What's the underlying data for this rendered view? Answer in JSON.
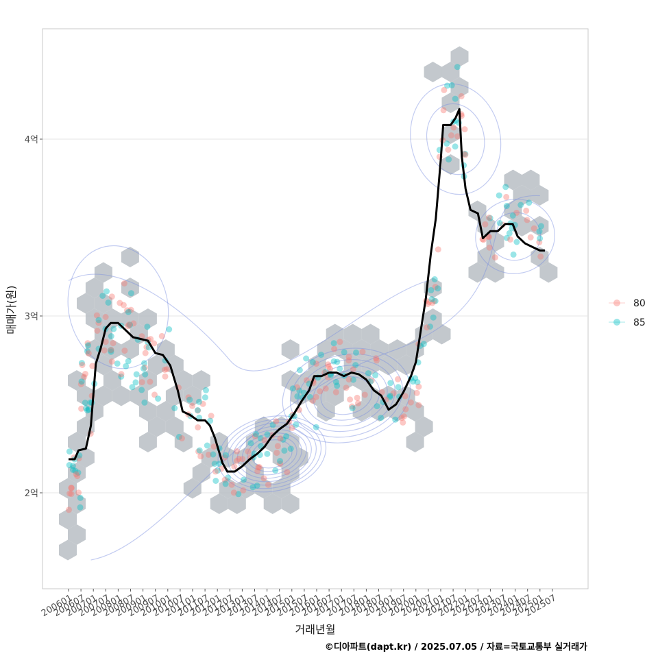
{
  "chart_data": {
    "type": "scatter",
    "xlabel": "거래년월",
    "ylabel": "매매가(원)",
    "caption": "©디아파트(dapt.kr) / 2025.07.05 / 자료=국토교통부 실거래가",
    "ylim": [
      1.55,
      4.65
    ],
    "y_ticks": [
      {
        "value": 2,
        "label": "2억"
      },
      {
        "value": 3,
        "label": "3억"
      },
      {
        "value": 4,
        "label": "4억"
      }
    ],
    "x_range": [
      2006.0,
      2025.58
    ],
    "x_ticks": [
      "200601",
      "200607",
      "200701",
      "200707",
      "200801",
      "200807",
      "200901",
      "200907",
      "201001",
      "201007",
      "201101",
      "201107",
      "201201",
      "201207",
      "201301",
      "201307",
      "201401",
      "201407",
      "201501",
      "201507",
      "201601",
      "201607",
      "201701",
      "201707",
      "201801",
      "201807",
      "201901",
      "201907",
      "202001",
      "202007",
      "202101",
      "202107",
      "202201",
      "202207",
      "202301",
      "202307",
      "202401",
      "202407",
      "202501",
      "202507"
    ],
    "grid": true,
    "legend_position": "right",
    "legend": [
      {
        "label": "80",
        "color": "#F8766D"
      },
      {
        "label": "85",
        "color": "#00BFC4"
      }
    ],
    "colors": {
      "hex": "#b8bec4",
      "contour": "#7b8fe0",
      "trend": "#000000",
      "panel_border": "#c8c8c8",
      "grid": "#e5e5e5"
    },
    "trend_line": [
      [
        2006.0,
        2.19
      ],
      [
        2006.25,
        2.19
      ],
      [
        2006.4,
        2.24
      ],
      [
        2006.7,
        2.25
      ],
      [
        2006.9,
        2.38
      ],
      [
        2007.1,
        2.73
      ],
      [
        2007.3,
        2.82
      ],
      [
        2007.5,
        2.93
      ],
      [
        2007.7,
        2.96
      ],
      [
        2008.0,
        2.96
      ],
      [
        2008.3,
        2.92
      ],
      [
        2008.6,
        2.88
      ],
      [
        2008.9,
        2.87
      ],
      [
        2009.2,
        2.86
      ],
      [
        2009.5,
        2.79
      ],
      [
        2009.8,
        2.78
      ],
      [
        2010.1,
        2.72
      ],
      [
        2010.4,
        2.58
      ],
      [
        2010.6,
        2.46
      ],
      [
        2010.9,
        2.44
      ],
      [
        2011.2,
        2.41
      ],
      [
        2011.5,
        2.41
      ],
      [
        2011.7,
        2.38
      ],
      [
        2011.9,
        2.31
      ],
      [
        2012.2,
        2.17
      ],
      [
        2012.4,
        2.12
      ],
      [
        2012.7,
        2.12
      ],
      [
        2013.0,
        2.15
      ],
      [
        2013.3,
        2.19
      ],
      [
        2013.6,
        2.22
      ],
      [
        2013.9,
        2.26
      ],
      [
        2014.2,
        2.32
      ],
      [
        2014.5,
        2.36
      ],
      [
        2014.8,
        2.39
      ],
      [
        2015.1,
        2.45
      ],
      [
        2015.4,
        2.52
      ],
      [
        2015.7,
        2.58
      ],
      [
        2015.9,
        2.66
      ],
      [
        2016.2,
        2.66
      ],
      [
        2016.5,
        2.68
      ],
      [
        2016.8,
        2.68
      ],
      [
        2017.1,
        2.66
      ],
      [
        2017.4,
        2.68
      ],
      [
        2017.7,
        2.67
      ],
      [
        2018.0,
        2.64
      ],
      [
        2018.3,
        2.58
      ],
      [
        2018.6,
        2.55
      ],
      [
        2018.9,
        2.47
      ],
      [
        2019.2,
        2.5
      ],
      [
        2019.5,
        2.57
      ],
      [
        2019.8,
        2.66
      ],
      [
        2020.0,
        2.74
      ],
      [
        2020.2,
        2.92
      ],
      [
        2020.4,
        3.1
      ],
      [
        2020.6,
        3.35
      ],
      [
        2020.8,
        3.55
      ],
      [
        2021.0,
        3.88
      ],
      [
        2021.1,
        4.08
      ],
      [
        2021.4,
        4.08
      ],
      [
        2021.6,
        4.12
      ],
      [
        2021.75,
        4.17
      ],
      [
        2021.85,
        3.9
      ],
      [
        2022.0,
        3.72
      ],
      [
        2022.2,
        3.6
      ],
      [
        2022.5,
        3.58
      ],
      [
        2022.7,
        3.44
      ],
      [
        2023.0,
        3.48
      ],
      [
        2023.3,
        3.48
      ],
      [
        2023.6,
        3.52
      ],
      [
        2023.9,
        3.52
      ],
      [
        2024.1,
        3.45
      ],
      [
        2024.4,
        3.41
      ],
      [
        2024.7,
        3.39
      ],
      [
        2025.0,
        3.37
      ],
      [
        2025.2,
        3.37
      ]
    ]
  }
}
